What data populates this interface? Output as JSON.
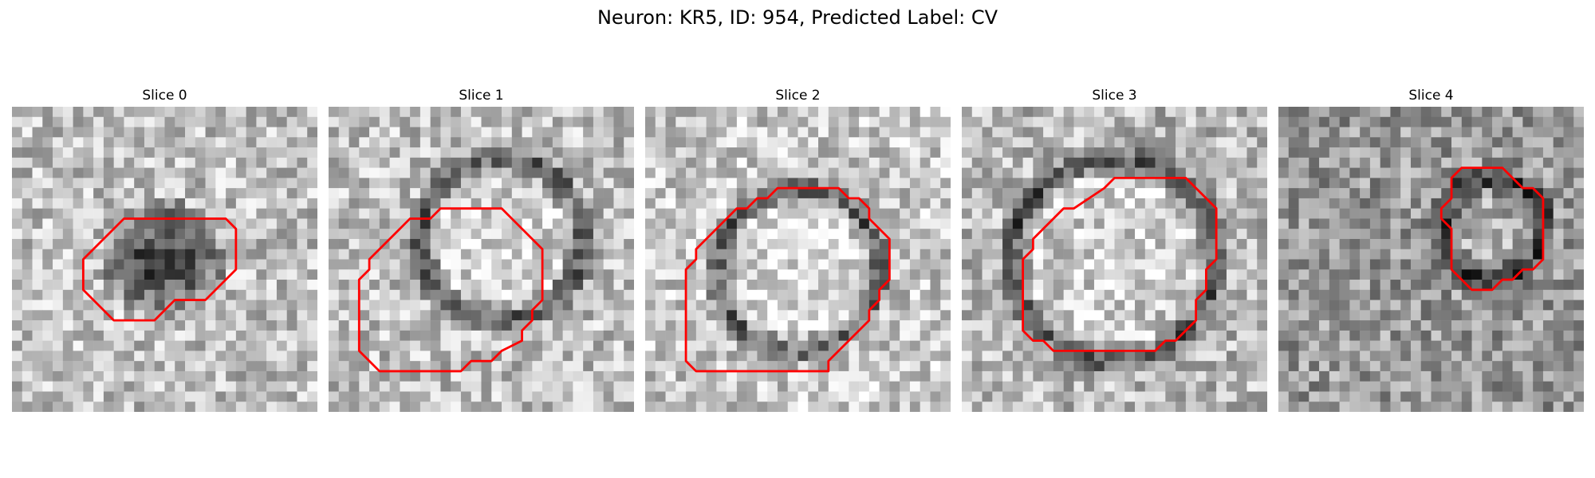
{
  "figure": {
    "title": "Neuron: KR5, ID: 954, Predicted Label: CV"
  },
  "colors": {
    "contour": "#ff0000",
    "background": "#ffffff"
  },
  "panels": [
    {
      "title": "Slice 0",
      "seed": 11,
      "bg_level": 0.75,
      "blob": {
        "cx": 15,
        "cy": 15,
        "r": 6,
        "filled": true
      },
      "contour": [
        [
          12,
          11
        ],
        [
          21,
          11
        ],
        [
          22,
          12
        ],
        [
          22,
          16
        ],
        [
          19,
          19
        ],
        [
          16,
          19
        ],
        [
          15,
          20
        ],
        [
          14,
          21
        ],
        [
          10,
          21
        ],
        [
          9,
          20
        ],
        [
          7,
          18
        ],
        [
          7,
          15
        ],
        [
          10,
          12
        ],
        [
          11,
          11
        ]
      ]
    },
    {
      "title": "Slice 1",
      "seed": 23,
      "bg_level": 0.75,
      "blob": {
        "cx": 17,
        "cy": 13,
        "r": 8,
        "filled": false
      },
      "contour": [
        [
          11,
          10
        ],
        [
          17,
          10
        ],
        [
          18,
          11
        ],
        [
          21,
          14
        ],
        [
          21,
          19
        ],
        [
          20,
          20
        ],
        [
          20,
          21
        ],
        [
          19,
          22
        ],
        [
          19,
          23
        ],
        [
          17,
          24
        ],
        [
          16,
          25
        ],
        [
          14,
          25
        ],
        [
          13,
          26
        ],
        [
          5,
          26
        ],
        [
          4,
          25
        ],
        [
          3,
          24
        ],
        [
          3,
          17
        ],
        [
          4,
          16
        ],
        [
          4,
          15
        ],
        [
          7,
          12
        ],
        [
          8,
          11
        ],
        [
          10,
          11
        ]
      ]
    },
    {
      "title": "Slice 2",
      "seed": 37,
      "bg_level": 0.78,
      "blob": {
        "cx": 15,
        "cy": 16,
        "r": 8,
        "filled": false
      },
      "contour": [
        [
          13,
          8
        ],
        [
          19,
          8
        ],
        [
          20,
          9
        ],
        [
          21,
          9
        ],
        [
          22,
          10
        ],
        [
          22,
          11
        ],
        [
          24,
          13
        ],
        [
          24,
          17
        ],
        [
          23,
          18
        ],
        [
          23,
          19
        ],
        [
          22,
          20
        ],
        [
          22,
          21
        ],
        [
          18,
          25
        ],
        [
          18,
          26
        ],
        [
          13,
          26
        ],
        [
          5,
          26
        ],
        [
          4,
          25
        ],
        [
          4,
          22
        ],
        [
          4,
          16
        ],
        [
          5,
          15
        ],
        [
          5,
          14
        ],
        [
          8,
          11
        ],
        [
          9,
          10
        ],
        [
          10,
          10
        ],
        [
          11,
          9
        ],
        [
          12,
          9
        ]
      ]
    },
    {
      "title": "Slice 3",
      "seed": 41,
      "bg_level": 0.72,
      "blob": {
        "cx": 15,
        "cy": 15,
        "r": 10,
        "filled": false
      },
      "contour": [
        [
          15,
          7
        ],
        [
          22,
          7
        ],
        [
          24,
          9
        ],
        [
          25,
          10
        ],
        [
          25,
          15
        ],
        [
          24,
          16
        ],
        [
          24,
          18
        ],
        [
          23,
          19
        ],
        [
          23,
          21
        ],
        [
          21,
          23
        ],
        [
          20,
          23
        ],
        [
          19,
          24
        ],
        [
          17,
          24
        ],
        [
          15,
          24
        ],
        [
          9,
          24
        ],
        [
          8,
          23
        ],
        [
          7,
          23
        ],
        [
          6,
          22
        ],
        [
          6,
          15
        ],
        [
          7,
          14
        ],
        [
          7,
          13
        ],
        [
          10,
          10
        ],
        [
          11,
          10
        ],
        [
          14,
          8
        ]
      ]
    },
    {
      "title": "Slice 4",
      "seed": 53,
      "bg_level": 0.6,
      "blob": {
        "cx": 21,
        "cy": 12,
        "r": 5,
        "filled": false
      },
      "contour": [
        [
          18,
          6
        ],
        [
          22,
          6
        ],
        [
          23,
          7
        ],
        [
          24,
          8
        ],
        [
          25,
          8
        ],
        [
          26,
          9
        ],
        [
          26,
          15
        ],
        [
          25,
          16
        ],
        [
          24,
          16
        ],
        [
          23,
          17
        ],
        [
          22,
          17
        ],
        [
          21,
          18
        ],
        [
          19,
          18
        ],
        [
          18,
          17
        ],
        [
          17,
          16
        ],
        [
          17,
          12
        ],
        [
          16,
          11
        ],
        [
          16,
          10
        ],
        [
          17,
          9
        ],
        [
          17,
          7
        ]
      ]
    }
  ]
}
